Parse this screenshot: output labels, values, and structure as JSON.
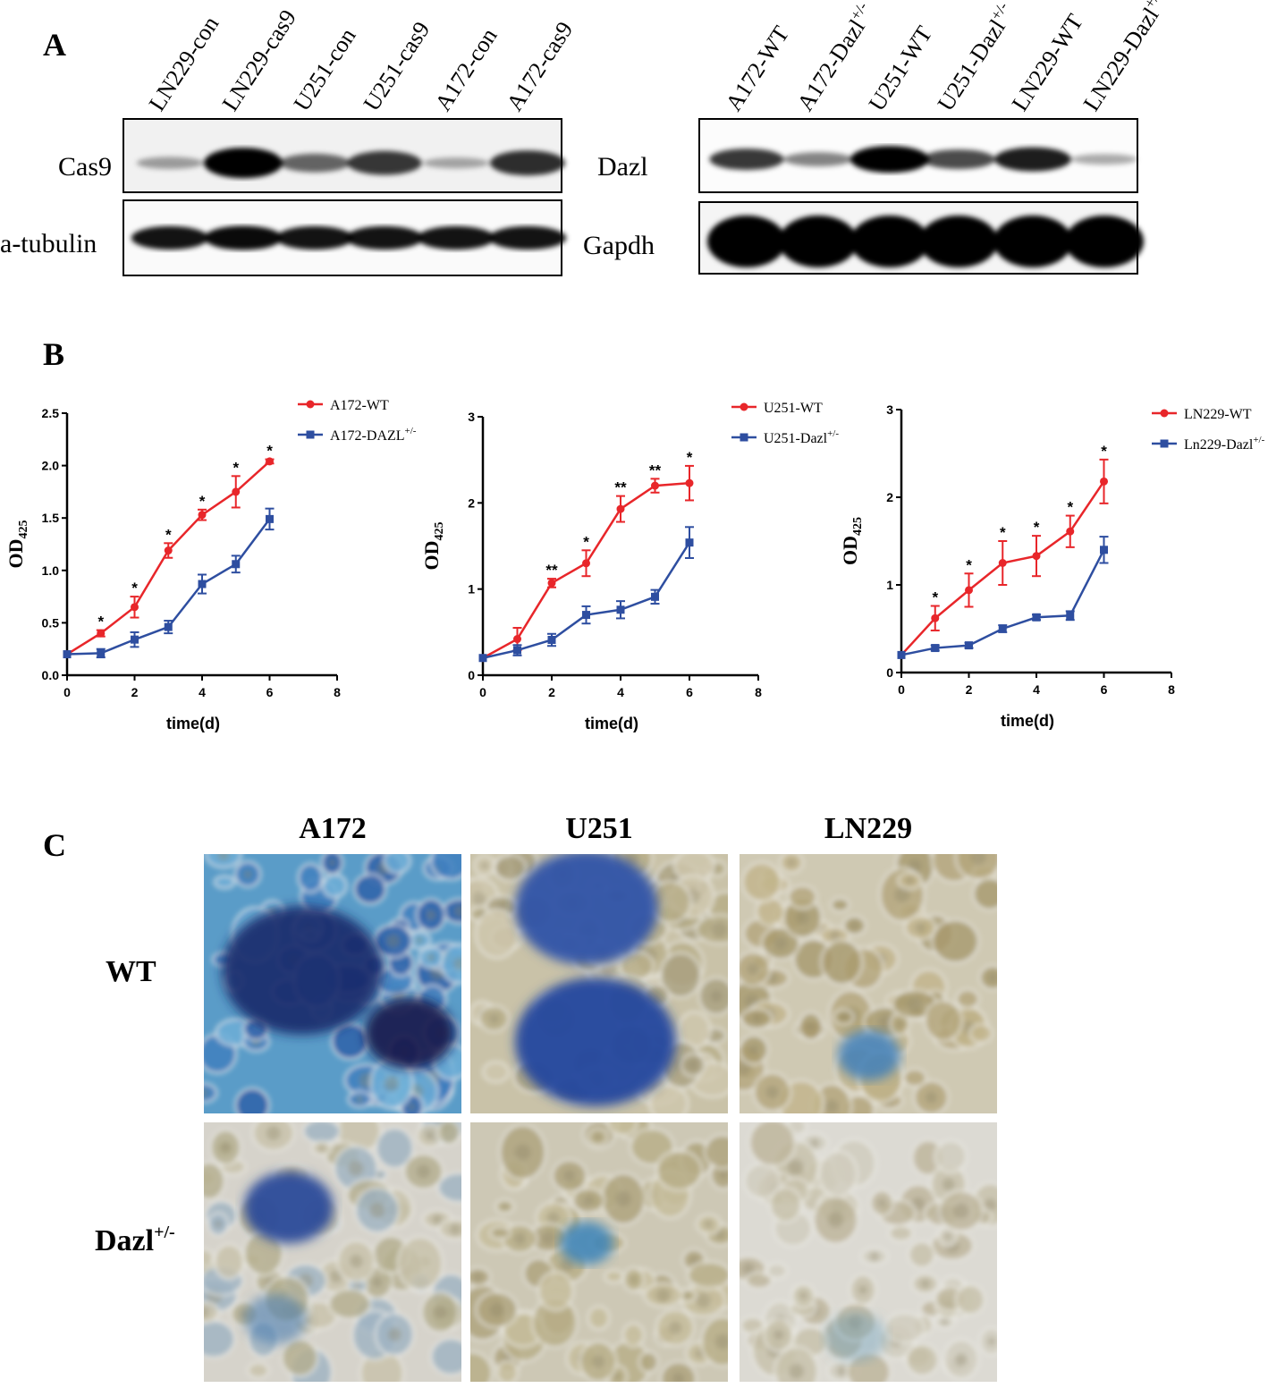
{
  "panel_a": {
    "label": "A",
    "blot_left": {
      "lanes": [
        {
          "text": "LN229-con"
        },
        {
          "text": "LN229-cas9"
        },
        {
          "text": "U251-con"
        },
        {
          "text": "U251-cas9"
        },
        {
          "text": "A172-con"
        },
        {
          "text": "A172-cas9"
        }
      ],
      "rows": [
        "Cas9",
        "a-tubulin"
      ]
    },
    "blot_right": {
      "lanes": [
        {
          "text": "A172-WT"
        },
        {
          "text": "A172-Dazl",
          "sup": "+/-"
        },
        {
          "text": "U251-WT"
        },
        {
          "text": "U251-Dazl",
          "sup": "+/-"
        },
        {
          "text": "LN229-WT"
        },
        {
          "text": "LN229-Dazl",
          "sup": "+/-"
        }
      ],
      "rows": [
        "Dazl",
        "Gapdh"
      ]
    }
  },
  "panel_b": {
    "label": "B"
  },
  "chart_data": [
    {
      "type": "line",
      "x_label": "time(d)",
      "y_label": "OD",
      "y_label_sub": "425",
      "x": [
        0,
        1,
        2,
        3,
        4,
        5,
        6
      ],
      "xlim": [
        0,
        8
      ],
      "xticks": [
        0,
        2,
        4,
        6,
        8
      ],
      "ylim": [
        0,
        2.5
      ],
      "yticks": [
        {
          "value": 0,
          "label": "0.0"
        },
        0.5,
        {
          "value": 1,
          "label": "1.0"
        },
        1.5,
        {
          "value": 2,
          "label": "2.0"
        },
        2.5
      ],
      "series": [
        {
          "name": "A172-WT",
          "color": "#e8262a",
          "marker": "circle",
          "values": [
            0.2,
            0.4,
            0.65,
            1.19,
            1.53,
            1.75,
            2.04
          ],
          "errors": [
            0,
            0.03,
            0.1,
            0.07,
            0.05,
            0.15,
            0.02
          ]
        },
        {
          "name": "A172-DAZL",
          "name_sup": "+/-",
          "color": "#2e4ea0",
          "marker": "square",
          "values": [
            0.2,
            0.21,
            0.34,
            0.46,
            0.87,
            1.06,
            1.49
          ],
          "errors": [
            0,
            0.04,
            0.07,
            0.06,
            0.09,
            0.08,
            0.1
          ]
        }
      ],
      "annotations": [
        {
          "x": 1,
          "label": "*"
        },
        {
          "x": 2,
          "label": "*"
        },
        {
          "x": 3,
          "label": "*"
        },
        {
          "x": 4,
          "label": "*"
        },
        {
          "x": 5,
          "label": "*"
        },
        {
          "x": 6,
          "label": "*"
        }
      ]
    },
    {
      "type": "line",
      "x_label": "time(d)",
      "y_label": "OD",
      "y_label_sub": "425",
      "x": [
        0,
        1,
        2,
        3,
        4,
        5,
        6
      ],
      "xlim": [
        0,
        8
      ],
      "xticks": [
        0,
        2,
        4,
        6,
        8
      ],
      "ylim": [
        0,
        3
      ],
      "yticks": [
        0,
        1,
        2,
        3
      ],
      "series": [
        {
          "name": "U251-WT",
          "color": "#e8262a",
          "marker": "circle",
          "values": [
            0.2,
            0.42,
            1.07,
            1.3,
            1.93,
            2.2,
            2.23
          ],
          "errors": [
            0,
            0.13,
            0.05,
            0.15,
            0.15,
            0.08,
            0.2
          ]
        },
        {
          "name": "U251-Dazl",
          "name_sup": "+/-",
          "color": "#2e4ea0",
          "marker": "square",
          "values": [
            0.2,
            0.29,
            0.41,
            0.7,
            0.76,
            0.91,
            1.54
          ],
          "errors": [
            0,
            0.06,
            0.07,
            0.1,
            0.1,
            0.08,
            0.18
          ]
        }
      ],
      "annotations": [
        {
          "x": 2,
          "label": "**"
        },
        {
          "x": 3,
          "label": "*"
        },
        {
          "x": 4,
          "label": "**"
        },
        {
          "x": 5,
          "label": "**"
        },
        {
          "x": 6,
          "label": "*"
        }
      ]
    },
    {
      "type": "line",
      "x_label": "time(d)",
      "y_label": "OD",
      "y_label_sub": "425",
      "x": [
        0,
        1,
        2,
        3,
        4,
        5,
        6
      ],
      "xlim": [
        0,
        8
      ],
      "xticks": [
        0,
        2,
        4,
        6,
        8
      ],
      "ylim": [
        0,
        3
      ],
      "yticks": [
        0,
        1,
        2,
        3
      ],
      "series": [
        {
          "name": "LN229-WT",
          "color": "#e8262a",
          "marker": "circle",
          "values": [
            0.2,
            0.62,
            0.94,
            1.25,
            1.33,
            1.61,
            2.18
          ],
          "errors": [
            0,
            0.14,
            0.19,
            0.25,
            0.23,
            0.18,
            0.25
          ]
        },
        {
          "name": "Ln229-Dazl",
          "name_sup": "+/-",
          "color": "#2e4ea0",
          "marker": "square",
          "values": [
            0.2,
            0.28,
            0.31,
            0.5,
            0.63,
            0.65,
            1.4
          ],
          "errors": [
            0,
            0.03,
            0.03,
            0.04,
            0.03,
            0.05,
            0.15
          ]
        }
      ],
      "annotations": [
        {
          "x": 1,
          "label": "*"
        },
        {
          "x": 2,
          "label": "*"
        },
        {
          "x": 3,
          "label": "*"
        },
        {
          "x": 4,
          "label": "*"
        },
        {
          "x": 5,
          "label": "*"
        },
        {
          "x": 6,
          "label": "*"
        }
      ]
    }
  ],
  "panel_c": {
    "label": "C",
    "columns": [
      "A172",
      "U251",
      "LN229"
    ],
    "rows": [
      {
        "text": "WT"
      },
      {
        "text": "Dazl",
        "sup": "+/-"
      }
    ]
  }
}
